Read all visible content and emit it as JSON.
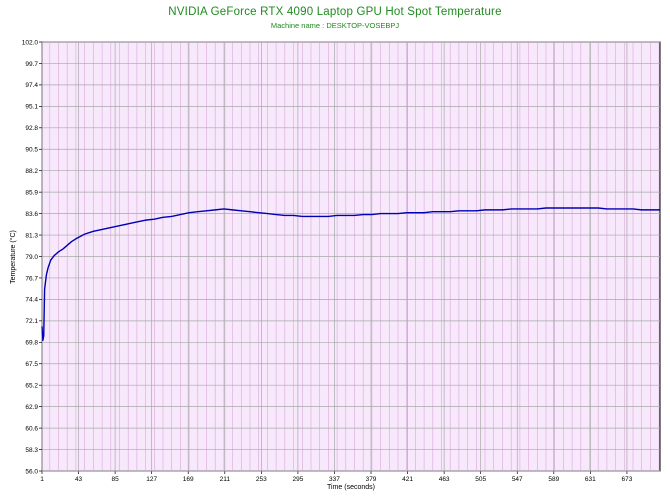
{
  "chart_data": {
    "type": "line",
    "title": "NVIDIA GeForce RTX 4090 Laptop GPU Hot Spot Temperature",
    "subtitle": "Machine name : DESKTOP-VOSEBPJ",
    "xlabel": "Time (seconds)",
    "ylabel": "Temperature (°C)",
    "xlim": [
      1,
      711
    ],
    "ylim": [
      56.0,
      102.0
    ],
    "x_ticks": [
      "1",
      "43",
      "85",
      "127",
      "169",
      "211",
      "253",
      "295",
      "337",
      "379",
      "421",
      "463",
      "505",
      "547",
      "589",
      "631",
      "673"
    ],
    "y_ticks": [
      "56.0",
      "58.3",
      "60.6",
      "62.9",
      "65.2",
      "67.5",
      "69.8",
      "72.1",
      "74.4",
      "76.7",
      "79.0",
      "81.3",
      "83.6",
      "85.9",
      "88.2",
      "90.5",
      "92.8",
      "95.1",
      "97.4",
      "99.7",
      "102.0"
    ],
    "grid": true,
    "series": [
      {
        "color": "#0000b4",
        "x": [
          1,
          2,
          3,
          4,
          6,
          8,
          11,
          15,
          20,
          25,
          30,
          35,
          40,
          50,
          60,
          70,
          80,
          90,
          100,
          110,
          120,
          130,
          140,
          150,
          160,
          170,
          180,
          190,
          200,
          210,
          220,
          230,
          240,
          250,
          260,
          270,
          280,
          290,
          300,
          310,
          320,
          330,
          340,
          350,
          360,
          370,
          380,
          390,
          400,
          410,
          420,
          430,
          440,
          450,
          460,
          470,
          480,
          490,
          500,
          510,
          520,
          530,
          540,
          550,
          560,
          570,
          580,
          590,
          600,
          610,
          620,
          630,
          640,
          650,
          660,
          670,
          680,
          690,
          700,
          711
        ],
        "y": [
          71.5,
          70.0,
          70.5,
          75.5,
          77.0,
          77.8,
          78.6,
          79.1,
          79.5,
          79.8,
          80.2,
          80.6,
          80.9,
          81.4,
          81.7,
          81.9,
          82.1,
          82.3,
          82.5,
          82.7,
          82.9,
          83.0,
          83.2,
          83.3,
          83.5,
          83.7,
          83.8,
          83.9,
          84.0,
          84.1,
          84.0,
          83.9,
          83.8,
          83.7,
          83.6,
          83.5,
          83.4,
          83.4,
          83.3,
          83.3,
          83.3,
          83.3,
          83.4,
          83.4,
          83.4,
          83.5,
          83.5,
          83.6,
          83.6,
          83.6,
          83.7,
          83.7,
          83.7,
          83.8,
          83.8,
          83.8,
          83.9,
          83.9,
          83.9,
          84.0,
          84.0,
          84.0,
          84.1,
          84.1,
          84.1,
          84.1,
          84.2,
          84.2,
          84.2,
          84.2,
          84.2,
          84.2,
          84.2,
          84.1,
          84.1,
          84.1,
          84.1,
          84.0,
          84.0,
          84.0
        ]
      }
    ]
  }
}
